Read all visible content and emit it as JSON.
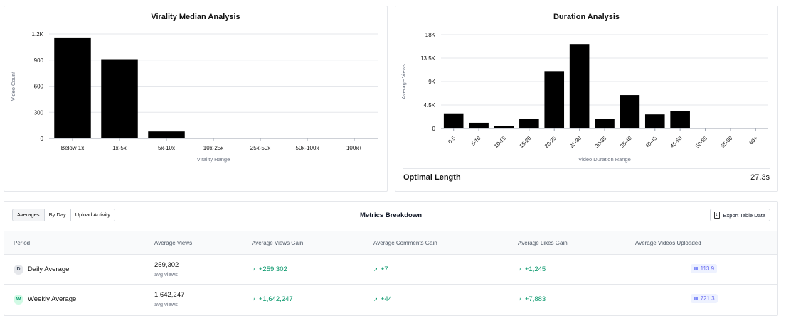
{
  "virality": {
    "title": "Virality Median Analysis",
    "chart_data": {
      "type": "bar",
      "title": "Virality Median Analysis",
      "xlabel": "Virality Range",
      "ylabel": "Video Count",
      "categories": [
        "Below 1x",
        "1x-5x",
        "5x-10x",
        "10x-25x",
        "25x-50x",
        "50x-100x",
        "100x+"
      ],
      "values": [
        1160,
        910,
        80,
        8,
        3,
        2,
        2
      ],
      "ylim": [
        0,
        1200
      ],
      "yticks": [
        0,
        300,
        600,
        900,
        1200
      ],
      "ytick_labels": [
        "0",
        "300",
        "600",
        "900",
        "1.2K"
      ]
    }
  },
  "duration": {
    "title": "Duration Analysis",
    "chart_data": {
      "type": "bar",
      "title": "Duration Analysis",
      "xlabel": "Video Duration Range",
      "ylabel": "Average Views",
      "categories": [
        "0-5",
        "5-10",
        "10-15",
        "15-20",
        "20-25",
        "25-30",
        "30-35",
        "35-40",
        "40-45",
        "45-50",
        "50-55",
        "55-60",
        "60+"
      ],
      "values": [
        2900,
        1100,
        500,
        1800,
        11000,
        16200,
        1900,
        6400,
        2700,
        3300,
        0,
        0,
        0
      ],
      "ylim": [
        0,
        18000
      ],
      "yticks": [
        0,
        4500,
        9000,
        13500,
        18000
      ],
      "ytick_labels": [
        "0",
        "4.5K",
        "9K",
        "13.5K",
        "18K"
      ]
    },
    "optimal_label": "Optimal Length",
    "optimal_value": "27.3s"
  },
  "metrics": {
    "title": "Metrics Breakdown",
    "tabs": [
      "Averages",
      "By Day",
      "Upload Activity"
    ],
    "export_label": "Export Table Data",
    "columns": [
      "Period",
      "Average Views",
      "Average Views Gain",
      "Average Comments Gain",
      "Average Likes Gain",
      "Average Videos Uploaded"
    ],
    "rows": [
      {
        "initial": "D",
        "period": "Daily Average",
        "views": "259,302",
        "views_sub": "avg views",
        "views_gain": "+259,302",
        "comments_gain": "+7",
        "likes_gain": "+1,245",
        "uploaded": "113.9"
      },
      {
        "initial": "W",
        "period": "Weekly Average",
        "views": "1,642,247",
        "views_sub": "avg views",
        "views_gain": "+1,642,247",
        "comments_gain": "+44",
        "likes_gain": "+7,883",
        "uploaded": "721.3"
      }
    ]
  }
}
